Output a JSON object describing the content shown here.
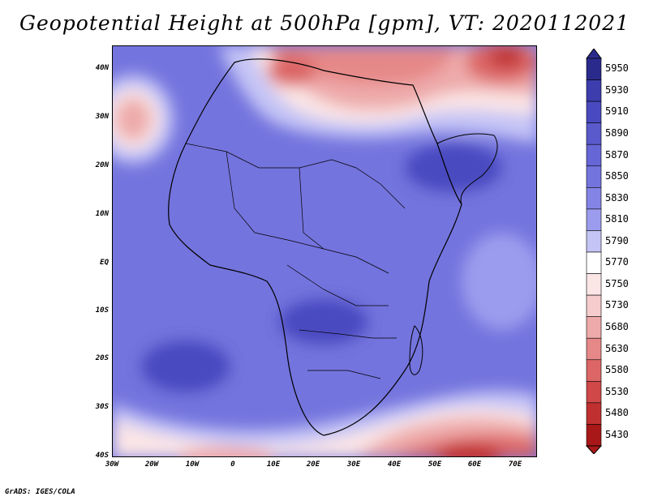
{
  "title": "Geopotential Height at 500hPa [gpm], VT: 2020112021",
  "footer": "GrADS: IGES/COLA",
  "map": {
    "region": "Africa",
    "lon_range": [
      "30W",
      "75E"
    ],
    "lat_range": [
      "40S",
      "45N"
    ],
    "lat_ticks": [
      "40N",
      "30N",
      "20N",
      "10N",
      "EQ",
      "10S",
      "20S",
      "30S",
      "40S"
    ],
    "lon_ticks": [
      "30W",
      "20W",
      "10W",
      "0",
      "10E",
      "20E",
      "30E",
      "40E",
      "50E",
      "60E",
      "70E"
    ],
    "variable": "Geopotential Height",
    "level": "500hPa",
    "units": "gpm"
  },
  "colorbar": {
    "levels": [
      "5950",
      "5930",
      "5910",
      "5890",
      "5870",
      "5850",
      "5830",
      "5810",
      "5790",
      "5770",
      "5750",
      "5730",
      "5680",
      "5630",
      "5580",
      "5530",
      "5480",
      "5430"
    ],
    "colors": [
      "#2a2a8c",
      "#3d3dad",
      "#4a4ac0",
      "#5a5acc",
      "#6666d6",
      "#7474de",
      "#8484e6",
      "#9c9cee",
      "#c4c4f6",
      "#ffffff",
      "#fbe6e6",
      "#f6cccc",
      "#eeaaaa",
      "#e68888",
      "#dc6666",
      "#d04848",
      "#c03030",
      "#a81818"
    ]
  }
}
